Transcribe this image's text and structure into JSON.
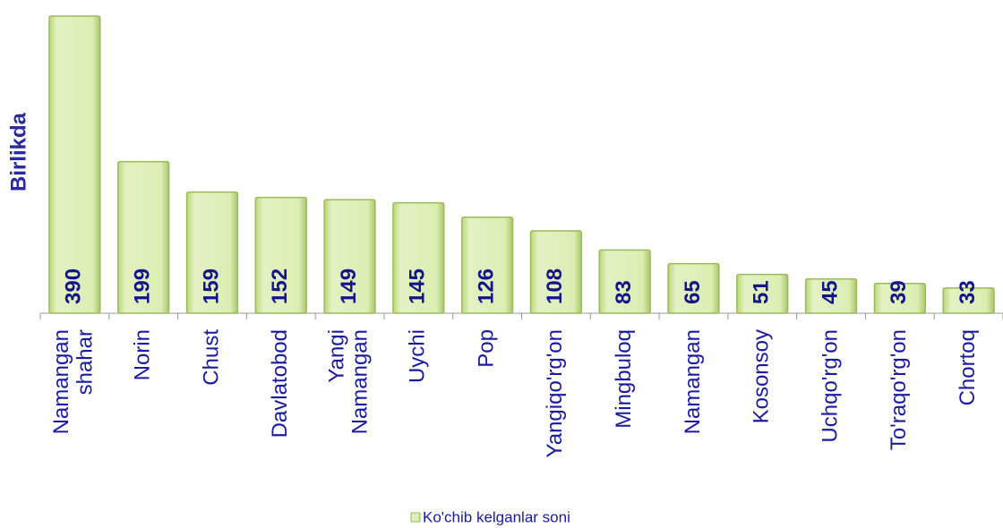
{
  "chart_data": {
    "type": "bar",
    "y_label": "Birlikda",
    "categories": [
      "Namangan shahar",
      "Norin",
      "Chust",
      "Davlatobod",
      "Yangi Namangan",
      "Uychi",
      "Pop",
      "Yangiqo'rg'on",
      "Mingbuloq",
      "Namangan",
      "Kosonsoy",
      "Uchqo'rg'on",
      "To'raqo'rg'on",
      "Chortoq"
    ],
    "series": [
      {
        "name": "Ko'chib kelganlar soni",
        "color": "#d3e8a0",
        "values": [
          390,
          199,
          159,
          152,
          149,
          145,
          126,
          108,
          83,
          65,
          51,
          45,
          39,
          33
        ]
      }
    ],
    "legend": "bottom"
  }
}
